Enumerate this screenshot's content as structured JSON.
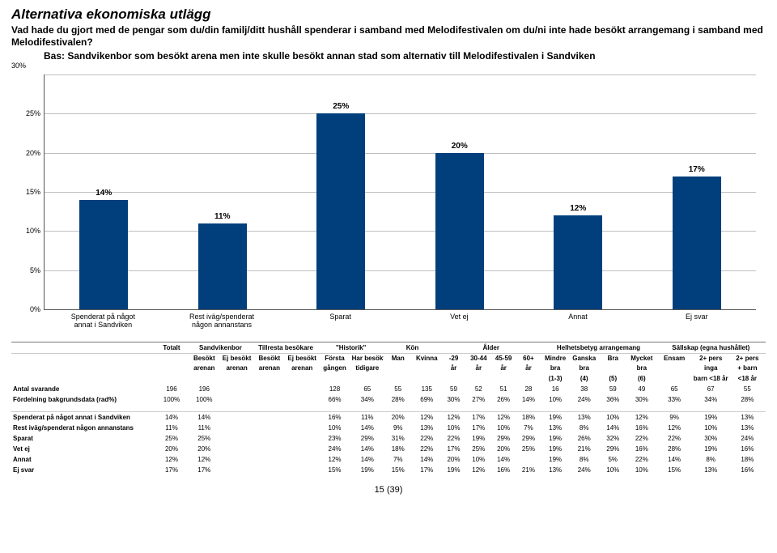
{
  "chart": {
    "type": "bar",
    "title": "Alternativa ekonomiska utlägg",
    "subtitle": "Vad hade du gjort med de pengar som du/din familj/ditt hushåll spenderar i samband med Melodifestivalen om du/ni inte hade besökt arrangemang i samband med Melodifestivalen?",
    "bas": "Bas: Sandvikenbor som besökt arena men inte skulle besökt annan stad som alternativ till Melodifestivalen i Sandviken",
    "bar_color": "#003f7c",
    "grid_color": "#bfbfbf",
    "background_color": "#ffffff",
    "ylim": [
      0,
      30
    ],
    "ytick_step": 5,
    "categories": [
      "Spenderat på något\nannat i Sandviken",
      "Rest iväg/spenderat\nnågon annanstans",
      "Sparat",
      "Vet ej",
      "Annat",
      "Ej svar"
    ],
    "values": [
      14,
      11,
      25,
      20,
      12,
      17
    ],
    "value_labels": [
      "14%",
      "11%",
      "25%",
      "20%",
      "12%",
      "17%"
    ]
  },
  "table": {
    "groups": [
      {
        "label": "Totalt",
        "cols": [
          {
            "l1": "",
            "l2": "",
            "l3": ""
          }
        ]
      },
      {
        "label": "Sandvikenbor",
        "cols": [
          {
            "l1": "Besökt",
            "l2": "arenan",
            "l3": ""
          },
          {
            "l1": "Ej besökt",
            "l2": "arenan",
            "l3": ""
          }
        ]
      },
      {
        "label": "Tillresta besökare",
        "cols": [
          {
            "l1": "Besökt",
            "l2": "arenan",
            "l3": ""
          },
          {
            "l1": "Ej besökt",
            "l2": "arenan",
            "l3": ""
          }
        ]
      },
      {
        "label": "\"Historik\"",
        "cols": [
          {
            "l1": "Första",
            "l2": "gången",
            "l3": ""
          },
          {
            "l1": "Har besökt",
            "l2": "tidigare",
            "l3": ""
          }
        ]
      },
      {
        "label": "Kön",
        "cols": [
          {
            "l1": "Man",
            "l2": "",
            "l3": ""
          },
          {
            "l1": "Kvinna",
            "l2": "",
            "l3": ""
          }
        ]
      },
      {
        "label": "Ålder",
        "cols": [
          {
            "l1": "-29",
            "l2": "år",
            "l3": ""
          },
          {
            "l1": "30-44",
            "l2": "år",
            "l3": ""
          },
          {
            "l1": "45-59",
            "l2": "år",
            "l3": ""
          },
          {
            "l1": "60+",
            "l2": "år",
            "l3": ""
          }
        ]
      },
      {
        "label": "Helhetsbetyg arrangemang",
        "cols": [
          {
            "l1": "Mindre",
            "l2": "bra",
            "l3": "(1-3)"
          },
          {
            "l1": "Ganska",
            "l2": "bra",
            "l3": "(4)"
          },
          {
            "l1": "Bra",
            "l2": "",
            "l3": "(5)"
          },
          {
            "l1": "Mycket",
            "l2": "bra",
            "l3": "(6)"
          }
        ]
      },
      {
        "label": "Sällskap (egna hushållet)",
        "cols": [
          {
            "l1": "Ensam",
            "l2": "",
            "l3": ""
          },
          {
            "l1": "2+ pers",
            "l2": "inga",
            "l3": "barn <18 år"
          },
          {
            "l1": "2+ pers",
            "l2": "+ barn",
            "l3": "<18 år"
          }
        ]
      }
    ],
    "rows": [
      {
        "label": "Antal svarande",
        "cells": [
          "196",
          "196",
          "",
          "",
          "",
          "128",
          "65",
          "55",
          "135",
          "59",
          "52",
          "51",
          "28",
          "16",
          "38",
          "59",
          "49",
          "65",
          "67",
          "55"
        ]
      },
      {
        "label": "Fördelning bakgrundsdata (rad%)",
        "cells": [
          "100%",
          "100%",
          "",
          "",
          "",
          "66%",
          "34%",
          "28%",
          "69%",
          "30%",
          "27%",
          "26%",
          "14%",
          "10%",
          "24%",
          "36%",
          "30%",
          "33%",
          "34%",
          "28%"
        ]
      },
      {
        "label": "Spenderat på något annat i Sandviken",
        "cells": [
          "14%",
          "14%",
          "",
          "",
          "",
          "16%",
          "11%",
          "20%",
          "12%",
          "12%",
          "17%",
          "12%",
          "18%",
          "19%",
          "13%",
          "10%",
          "12%",
          "9%",
          "19%",
          "13%"
        ],
        "sep": true
      },
      {
        "label": "Rest iväg/spenderat någon annanstans",
        "cells": [
          "11%",
          "11%",
          "",
          "",
          "",
          "10%",
          "14%",
          "9%",
          "13%",
          "10%",
          "17%",
          "10%",
          "7%",
          "13%",
          "8%",
          "14%",
          "16%",
          "12%",
          "10%",
          "13%"
        ]
      },
      {
        "label": "Sparat",
        "cells": [
          "25%",
          "25%",
          "",
          "",
          "",
          "23%",
          "29%",
          "31%",
          "22%",
          "22%",
          "19%",
          "29%",
          "29%",
          "19%",
          "26%",
          "32%",
          "22%",
          "22%",
          "30%",
          "24%"
        ]
      },
      {
        "label": "Vet ej",
        "cells": [
          "20%",
          "20%",
          "",
          "",
          "",
          "24%",
          "14%",
          "18%",
          "22%",
          "17%",
          "25%",
          "20%",
          "25%",
          "19%",
          "21%",
          "29%",
          "16%",
          "28%",
          "19%",
          "16%"
        ]
      },
      {
        "label": "Annat",
        "cells": [
          "12%",
          "12%",
          "",
          "",
          "",
          "12%",
          "14%",
          "7%",
          "14%",
          "20%",
          "10%",
          "14%",
          "",
          "19%",
          "8%",
          "5%",
          "22%",
          "14%",
          "8%",
          "18%"
        ]
      },
      {
        "label": "Ej svar",
        "cells": [
          "17%",
          "17%",
          "",
          "",
          "",
          "15%",
          "19%",
          "15%",
          "17%",
          "19%",
          "12%",
          "16%",
          "21%",
          "13%",
          "24%",
          "10%",
          "10%",
          "15%",
          "13%",
          "16%"
        ]
      }
    ]
  },
  "footer": "15 (39)"
}
